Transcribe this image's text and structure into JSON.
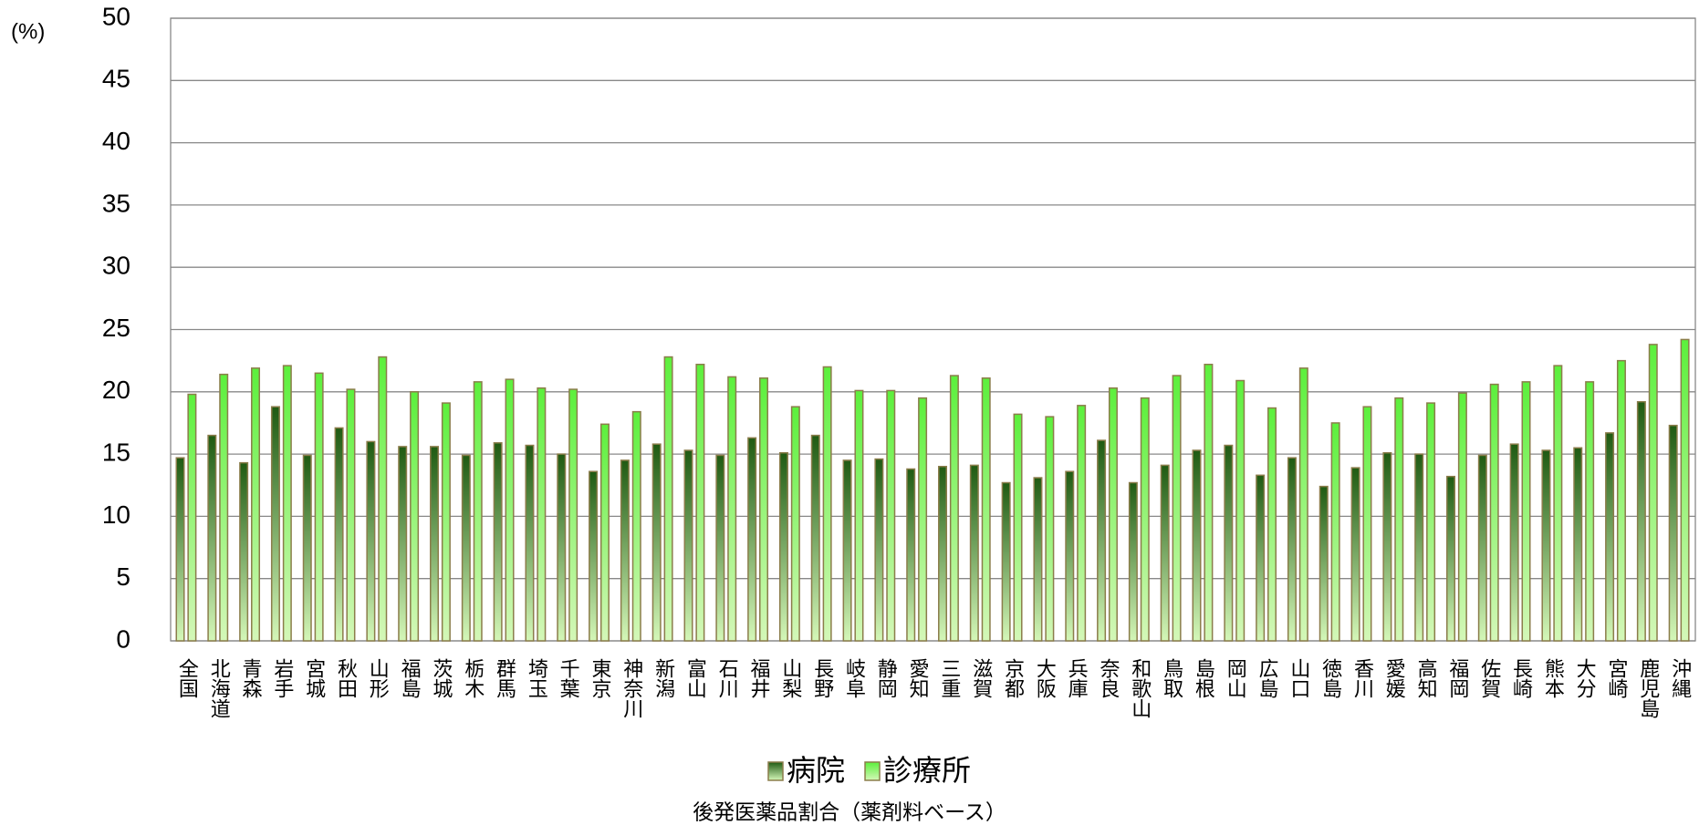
{
  "chart_data": {
    "type": "bar",
    "y_unit": "(%)",
    "x_label": "後発医薬品割合（薬剤料ベース）",
    "categories": [
      "全国",
      "北海道",
      "青森",
      "岩手",
      "宮城",
      "秋田",
      "山形",
      "福島",
      "茨城",
      "栃木",
      "群馬",
      "埼玉",
      "千葉",
      "東京",
      "神奈川",
      "新潟",
      "富山",
      "石川",
      "福井",
      "山梨",
      "長野",
      "岐阜",
      "静岡",
      "愛知",
      "三重",
      "滋賀",
      "京都",
      "大阪",
      "兵庫",
      "奈良",
      "和歌山",
      "鳥取",
      "島根",
      "岡山",
      "広島",
      "山口",
      "徳島",
      "香川",
      "愛媛",
      "高知",
      "福岡",
      "佐賀",
      "長崎",
      "熊本",
      "大分",
      "宮崎",
      "鹿児島",
      "沖縄"
    ],
    "series": [
      {
        "name": "病院",
        "color": "#1f5a12",
        "values": [
          14.7,
          16.5,
          14.3,
          18.8,
          14.9,
          17.1,
          16.0,
          15.6,
          15.6,
          14.9,
          15.9,
          15.7,
          15.0,
          13.6,
          14.5,
          15.8,
          15.3,
          14.9,
          16.3,
          15.1,
          16.5,
          14.5,
          14.6,
          13.8,
          14.0,
          14.1,
          12.7,
          13.1,
          13.6,
          16.1,
          12.7,
          14.1,
          15.3,
          15.7,
          13.3,
          14.7,
          12.4,
          13.9,
          15.1,
          15.0,
          13.2,
          14.9,
          15.8,
          15.3,
          15.5,
          16.7,
          19.2,
          17.3
        ]
      },
      {
        "name": "診療所",
        "color": "#5cf03c",
        "values": [
          19.8,
          21.4,
          21.9,
          22.1,
          21.5,
          20.2,
          22.8,
          20.0,
          19.1,
          20.8,
          21.0,
          20.3,
          20.2,
          17.4,
          18.4,
          22.8,
          22.2,
          21.2,
          21.1,
          18.8,
          22.0,
          20.1,
          20.1,
          19.5,
          21.3,
          21.1,
          18.2,
          18.0,
          18.9,
          20.3,
          19.5,
          21.3,
          22.2,
          20.9,
          18.7,
          21.9,
          17.5,
          18.8,
          19.5,
          19.1,
          19.9,
          20.6,
          20.8,
          22.1,
          20.8,
          22.5,
          23.8,
          24.2
        ]
      }
    ],
    "ylim": [
      0,
      50
    ],
    "yticks": [
      0,
      5,
      10,
      15,
      20,
      25,
      30,
      35,
      40,
      45,
      50
    ],
    "grid": true
  }
}
